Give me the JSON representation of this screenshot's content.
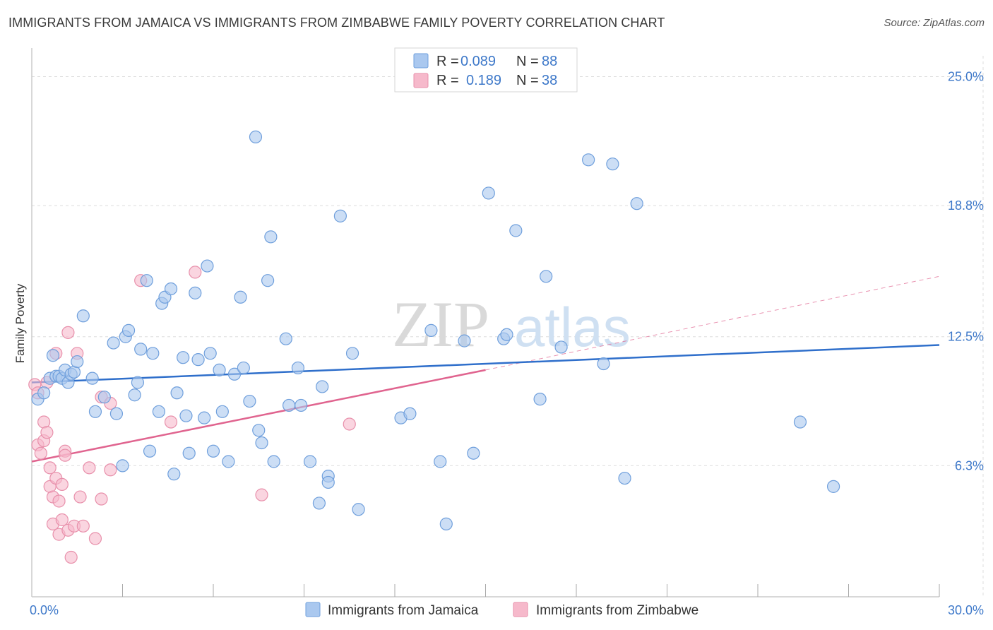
{
  "title": "IMMIGRANTS FROM JAMAICA VS IMMIGRANTS FROM ZIMBABWE FAMILY POVERTY CORRELATION CHART",
  "source": "Source: ZipAtlas.com",
  "watermark": {
    "zip": "ZIP",
    "atlas": "atlas"
  },
  "colors": {
    "jamaica_fill": "#aac8ef",
    "jamaica_stroke": "#6f9fdc",
    "jamaica_line": "#2f6fcb",
    "zimbabwe_fill": "#f6b9cb",
    "zimbabwe_stroke": "#e890ab",
    "zimbabwe_line": "#e0648f",
    "tick_text": "#3d78c9",
    "grid": "#dddddd"
  },
  "legend": {
    "r_label": "R =",
    "n_label": "N =",
    "jamaica": {
      "r": "0.089",
      "n": "88"
    },
    "zimbabwe": {
      "r": "0.189",
      "n": "38"
    }
  },
  "chart_data": {
    "type": "scatter",
    "xlabel": "",
    "ylabel": "Family Poverty",
    "xlim": [
      0,
      30
    ],
    "ylim": [
      0,
      26
    ],
    "x_tick_labels": [
      {
        "value": 0,
        "label": "0.0%"
      },
      {
        "value": 30,
        "label": "30.0%"
      }
    ],
    "y_ticks": [
      {
        "value": 6.3,
        "label": "6.3%"
      },
      {
        "value": 12.5,
        "label": "12.5%"
      },
      {
        "value": 18.8,
        "label": "18.8%"
      },
      {
        "value": 25.0,
        "label": "25.0%"
      }
    ],
    "x_minor_ticks": [
      3,
      6,
      9,
      12,
      15,
      18,
      21,
      24,
      27,
      30
    ],
    "series": [
      {
        "name": "Immigrants from Jamaica",
        "trend": {
          "x0": 0,
          "y0": 10.3,
          "x1": 30,
          "y1": 12.1
        },
        "points": [
          [
            0.2,
            9.5
          ],
          [
            0.4,
            9.8
          ],
          [
            0.6,
            10.5
          ],
          [
            0.7,
            11.6
          ],
          [
            0.8,
            10.6
          ],
          [
            0.9,
            10.6
          ],
          [
            1.0,
            10.5
          ],
          [
            1.1,
            10.9
          ],
          [
            1.2,
            10.3
          ],
          [
            1.3,
            10.7
          ],
          [
            1.4,
            10.8
          ],
          [
            1.5,
            11.3
          ],
          [
            1.7,
            13.5
          ],
          [
            2.0,
            10.5
          ],
          [
            2.1,
            8.9
          ],
          [
            2.4,
            9.6
          ],
          [
            2.7,
            12.2
          ],
          [
            2.8,
            8.8
          ],
          [
            3.0,
            6.3
          ],
          [
            3.1,
            12.5
          ],
          [
            3.2,
            12.8
          ],
          [
            3.4,
            9.7
          ],
          [
            3.5,
            10.3
          ],
          [
            3.6,
            11.9
          ],
          [
            3.8,
            15.2
          ],
          [
            3.9,
            7.0
          ],
          [
            4.0,
            11.7
          ],
          [
            4.2,
            8.9
          ],
          [
            4.3,
            14.1
          ],
          [
            4.4,
            14.4
          ],
          [
            4.6,
            14.8
          ],
          [
            4.7,
            5.9
          ],
          [
            4.8,
            9.8
          ],
          [
            5.0,
            11.5
          ],
          [
            5.1,
            8.7
          ],
          [
            5.2,
            6.9
          ],
          [
            5.4,
            14.6
          ],
          [
            5.5,
            11.4
          ],
          [
            5.7,
            8.6
          ],
          [
            5.8,
            15.9
          ],
          [
            5.9,
            11.7
          ],
          [
            6.0,
            7.0
          ],
          [
            6.2,
            10.9
          ],
          [
            6.3,
            8.9
          ],
          [
            6.5,
            6.5
          ],
          [
            6.7,
            10.7
          ],
          [
            6.9,
            14.4
          ],
          [
            7.0,
            11.0
          ],
          [
            7.2,
            9.4
          ],
          [
            7.4,
            22.1
          ],
          [
            7.5,
            8.0
          ],
          [
            7.6,
            7.4
          ],
          [
            7.8,
            15.2
          ],
          [
            7.9,
            17.3
          ],
          [
            8.0,
            6.5
          ],
          [
            8.4,
            12.4
          ],
          [
            8.5,
            9.2
          ],
          [
            8.8,
            11.0
          ],
          [
            9.2,
            6.5
          ],
          [
            9.5,
            4.5
          ],
          [
            9.6,
            10.1
          ],
          [
            9.8,
            5.8
          ],
          [
            10.2,
            18.3
          ],
          [
            10.6,
            11.7
          ],
          [
            10.8,
            4.2
          ],
          [
            12.2,
            8.6
          ],
          [
            12.5,
            8.8
          ],
          [
            13.2,
            12.8
          ],
          [
            13.5,
            6.5
          ],
          [
            13.7,
            3.5
          ],
          [
            14.3,
            12.3
          ],
          [
            14.6,
            6.9
          ],
          [
            15.1,
            19.4
          ],
          [
            15.6,
            12.4
          ],
          [
            15.7,
            12.6
          ],
          [
            16.0,
            17.6
          ],
          [
            16.8,
            9.5
          ],
          [
            17.0,
            15.4
          ],
          [
            17.5,
            12.0
          ],
          [
            18.4,
            21.0
          ],
          [
            18.9,
            11.2
          ],
          [
            19.2,
            20.8
          ],
          [
            19.6,
            5.7
          ],
          [
            20.0,
            18.9
          ],
          [
            25.4,
            8.4
          ],
          [
            26.5,
            5.3
          ],
          [
            9.8,
            5.5
          ],
          [
            8.9,
            9.2
          ]
        ]
      },
      {
        "name": "Immigrants from Zimbabwe",
        "trend": {
          "x0": 0,
          "y0": 6.5,
          "x1": 15,
          "y1": 10.9
        },
        "trend_extension": {
          "x0": 15,
          "y0": 10.9,
          "x1": 30,
          "y1": 15.4
        },
        "points": [
          [
            0.1,
            10.2
          ],
          [
            0.2,
            9.8
          ],
          [
            0.2,
            7.3
          ],
          [
            0.3,
            6.9
          ],
          [
            0.4,
            7.5
          ],
          [
            0.4,
            8.4
          ],
          [
            0.5,
            10.3
          ],
          [
            0.5,
            7.9
          ],
          [
            0.6,
            6.2
          ],
          [
            0.6,
            5.3
          ],
          [
            0.7,
            4.8
          ],
          [
            0.7,
            3.5
          ],
          [
            0.8,
            5.7
          ],
          [
            0.8,
            11.7
          ],
          [
            0.9,
            4.6
          ],
          [
            0.9,
            3.0
          ],
          [
            1.0,
            3.7
          ],
          [
            1.0,
            5.4
          ],
          [
            1.1,
            7.0
          ],
          [
            1.1,
            6.8
          ],
          [
            1.2,
            3.2
          ],
          [
            1.2,
            12.7
          ],
          [
            1.3,
            1.9
          ],
          [
            1.4,
            3.4
          ],
          [
            1.5,
            11.7
          ],
          [
            1.6,
            4.8
          ],
          [
            1.7,
            3.4
          ],
          [
            1.9,
            6.2
          ],
          [
            2.1,
            2.8
          ],
          [
            2.3,
            9.6
          ],
          [
            2.3,
            4.7
          ],
          [
            2.6,
            9.3
          ],
          [
            2.6,
            6.1
          ],
          [
            3.6,
            15.2
          ],
          [
            4.6,
            8.4
          ],
          [
            5.4,
            15.6
          ],
          [
            7.6,
            4.9
          ],
          [
            10.5,
            8.3
          ]
        ]
      }
    ]
  },
  "bottom_legend": {
    "jamaica_label": "Immigrants from Jamaica",
    "zimbabwe_label": "Immigrants from Zimbabwe"
  }
}
